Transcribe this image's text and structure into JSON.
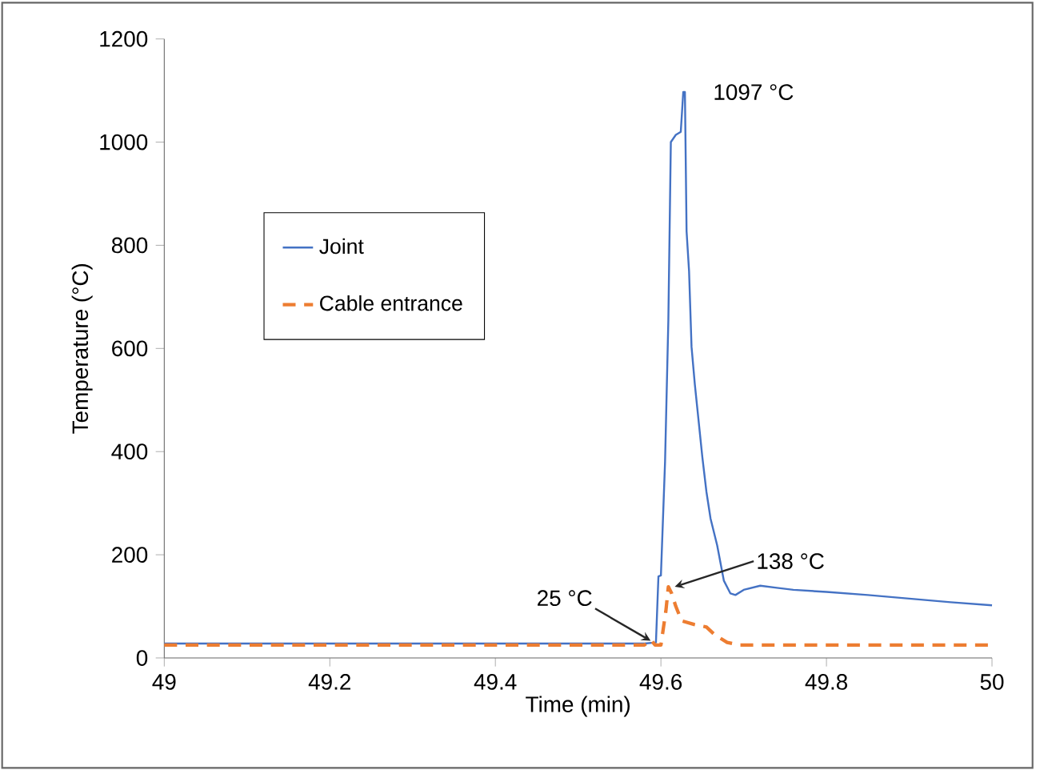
{
  "chart_data": {
    "type": "line",
    "xlabel": "Time (min)",
    "ylabel": "Temperature (°C)",
    "xlim": [
      49,
      50
    ],
    "xticks": [
      49,
      49.2,
      49.4,
      49.6,
      49.8,
      50
    ],
    "ylim": [
      0,
      1200
    ],
    "yticks": [
      0,
      200,
      400,
      600,
      800,
      1000,
      1200
    ],
    "legend": "left",
    "grid": false,
    "series": [
      {
        "name": "Joint",
        "color": "#4472c4",
        "line_style": "solid",
        "x": [
          49,
          49.2,
          49.4,
          49.58,
          49.594,
          49.597,
          49.6,
          49.605,
          49.609,
          49.612,
          49.618,
          49.624,
          49.627,
          49.629,
          49.631,
          49.634,
          49.637,
          49.641,
          49.645,
          49.65,
          49.655,
          49.66,
          49.668,
          49.676,
          49.684,
          49.69,
          49.7,
          49.72,
          49.74,
          49.76,
          49.8,
          49.85,
          49.9,
          49.95,
          50
        ],
        "values": [
          28,
          28,
          28,
          28,
          30,
          158,
          160,
          380,
          655,
          1000,
          1014,
          1020,
          1097,
          1097,
          827,
          750,
          603,
          530,
          468,
          390,
          322,
          270,
          218,
          150,
          125,
          122,
          132,
          140,
          136,
          132,
          128,
          122,
          115,
          108,
          102
        ]
      },
      {
        "name": "Cable entrance",
        "color": "#ed7d31",
        "line_style": "dashed",
        "x": [
          49,
          49.2,
          49.4,
          49.58,
          49.588,
          49.593,
          49.6,
          49.606,
          49.609,
          49.613,
          49.618,
          49.625,
          49.64,
          49.655,
          49.665,
          49.68,
          49.695,
          49.7,
          49.75,
          49.8,
          49.9,
          50
        ],
        "values": [
          25,
          25,
          25,
          25,
          35,
          25,
          25,
          91,
          138,
          125,
          100,
          72,
          65,
          60,
          45,
          30,
          25,
          25,
          25,
          25,
          25,
          25
        ]
      }
    ],
    "annotations": [
      {
        "text": "1097 °C",
        "x": 49.629,
        "y": 1097
      },
      {
        "text": "138 °C",
        "x": 49.609,
        "y": 138
      },
      {
        "text": "25 °C",
        "x": 49.585,
        "y": 25
      }
    ]
  }
}
